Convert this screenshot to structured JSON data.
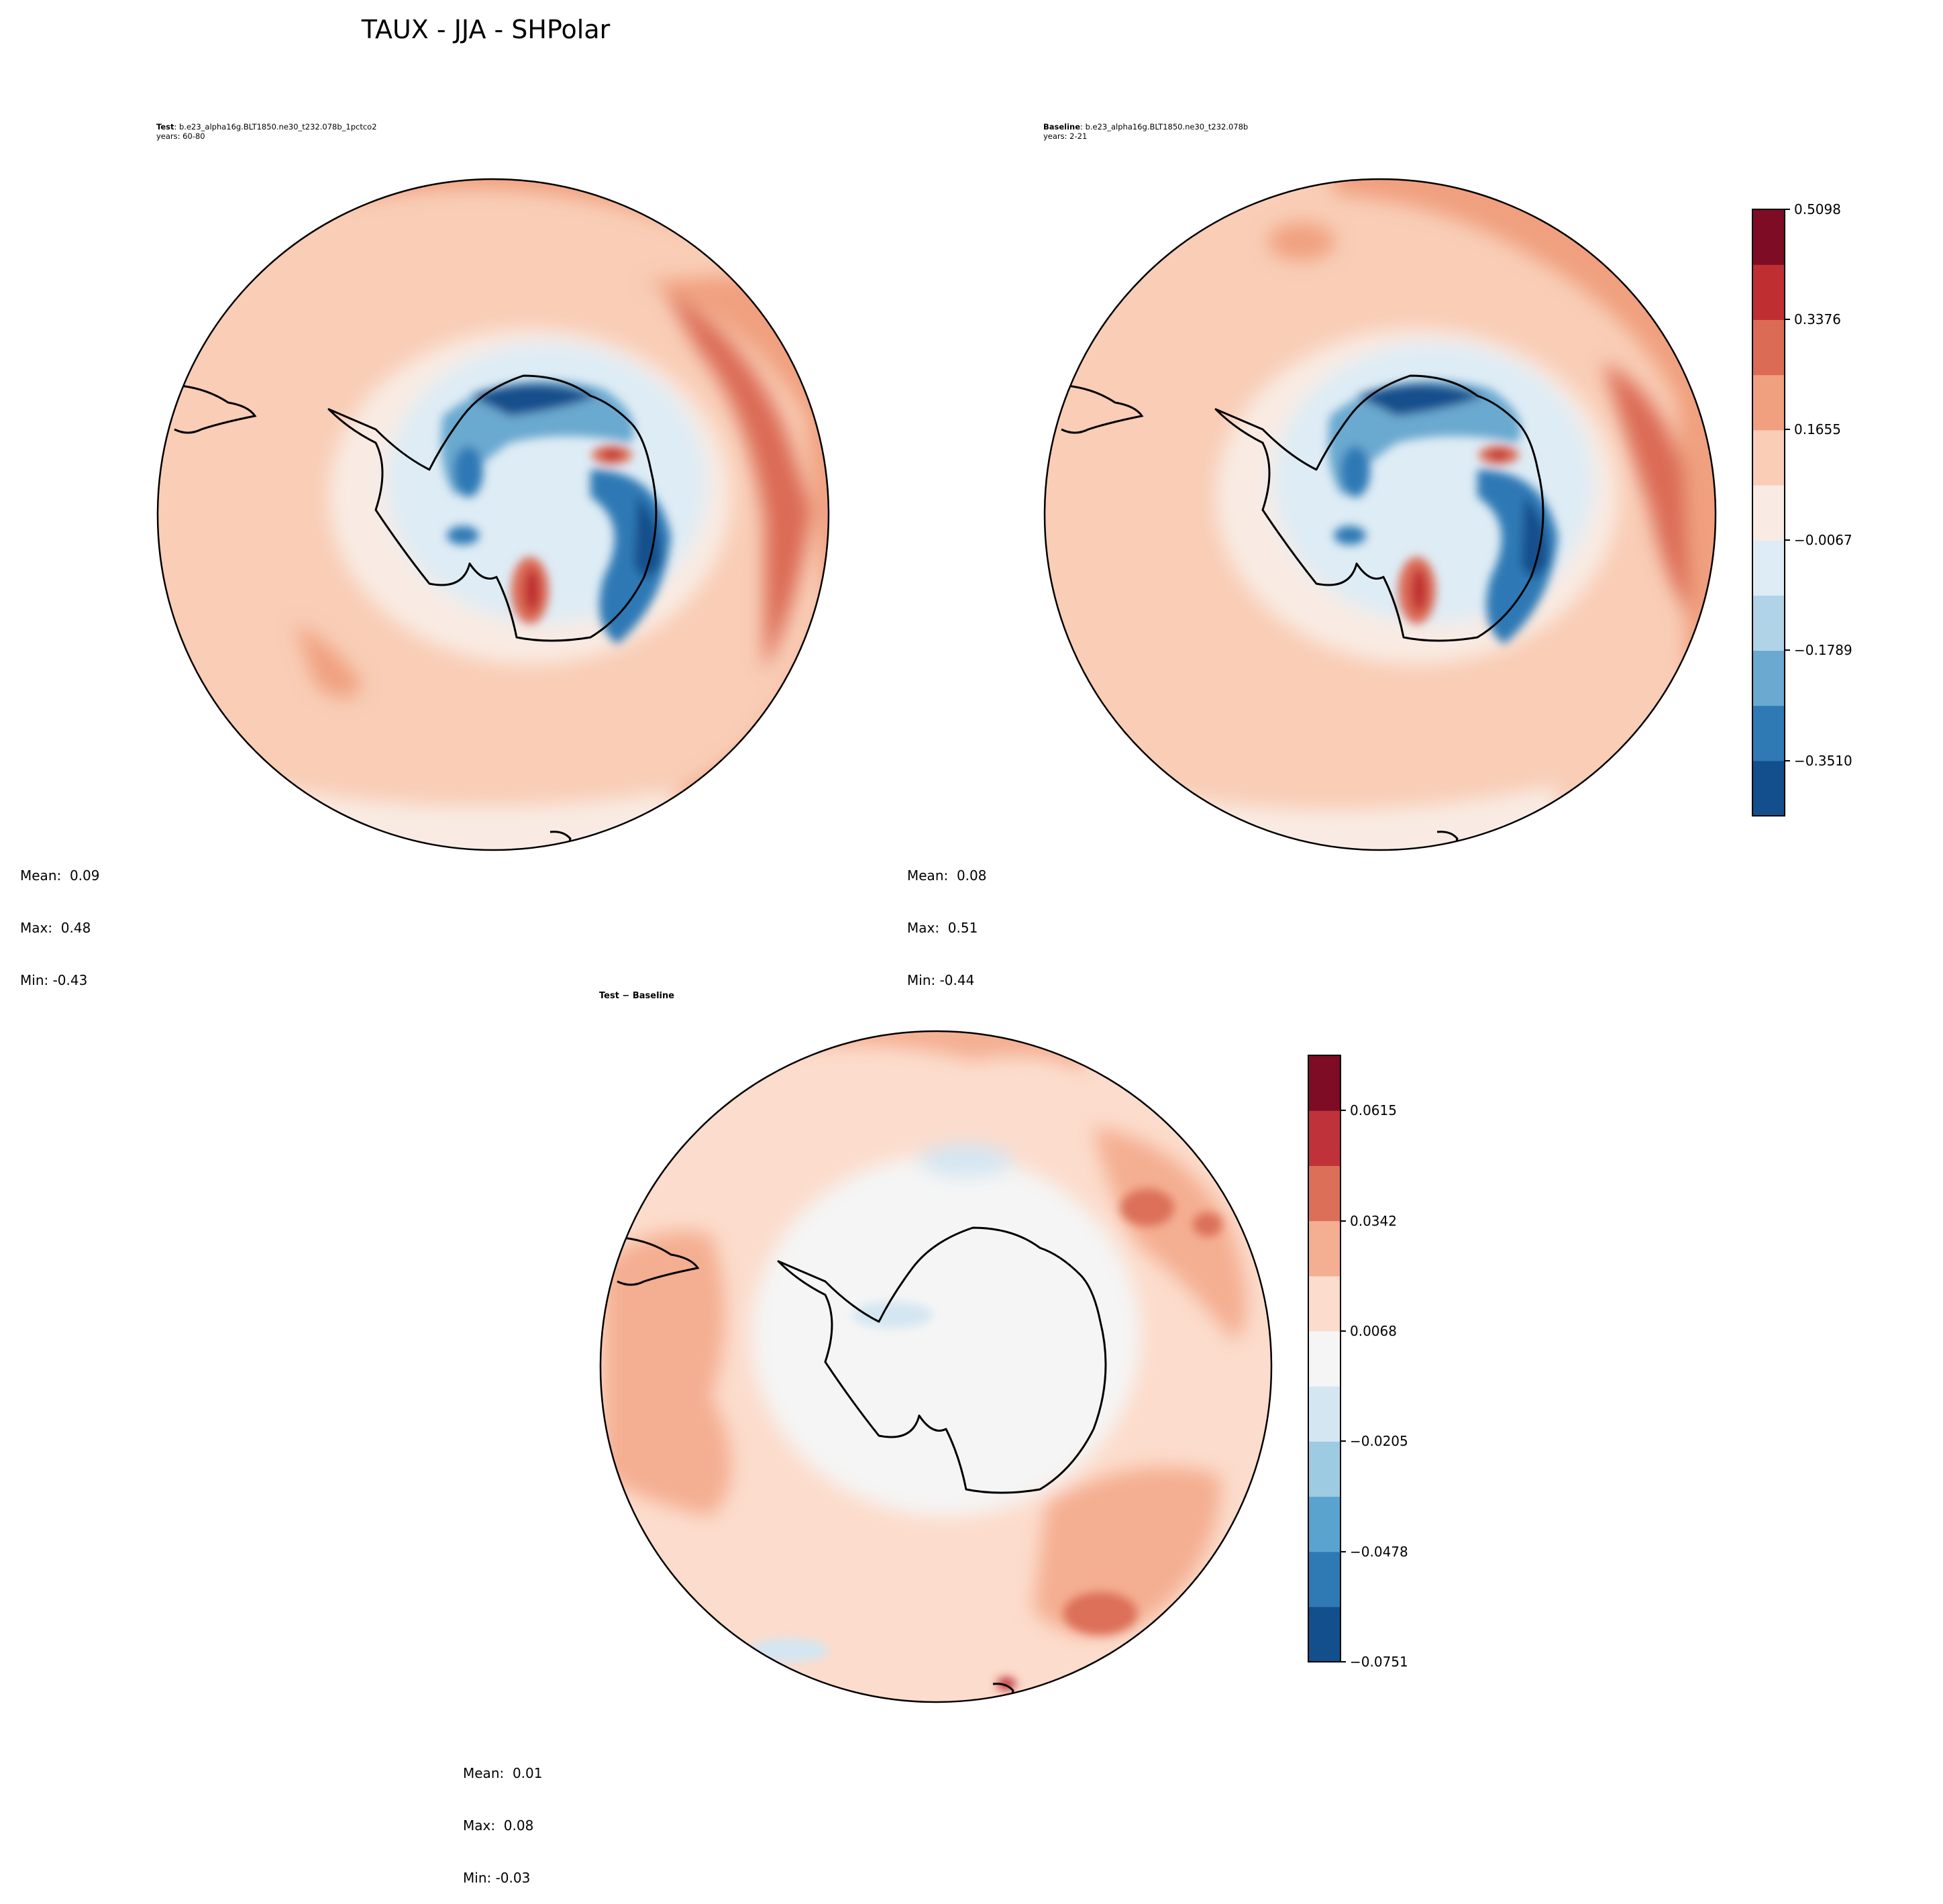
{
  "title": "TAUX - JJA - SHPolar",
  "chart_data": [
    {
      "type": "heatmap",
      "panel": "test",
      "projection": "south-polar-stereographic",
      "label_bold": "Test",
      "label_text": ": b.e23_alpha16g.BLT1850.ne30_t232.078b_1pctco2",
      "years": "years: 60-80",
      "stats": {
        "mean": "Mean:  0.09",
        "max": "Max:  0.48",
        "min": "Min: -0.43"
      }
    },
    {
      "type": "heatmap",
      "panel": "baseline",
      "projection": "south-polar-stereographic",
      "label_bold": "Baseline",
      "label_text": ": b.e23_alpha16g.BLT1850.ne30_t232.078b",
      "years": "years: 2-21",
      "stats": {
        "mean": "Mean:  0.08",
        "max": "Max:  0.51",
        "min": "Min: -0.44"
      },
      "colorbar": {
        "ticks": [
          "0.5098",
          "0.3376",
          "0.1655",
          "−0.0067",
          "−0.1789",
          "−0.3510"
        ],
        "colors": [
          "#124f8c",
          "#2f79b5",
          "#6ba9d0",
          "#b0d3e7",
          "#deecf5",
          "#f9ebe3",
          "#f9cdb6",
          "#f0a07f",
          "#db6b55",
          "#bf2f31",
          "#7d0c24"
        ]
      }
    },
    {
      "type": "heatmap",
      "panel": "difference",
      "projection": "south-polar-stereographic",
      "label_bold": "Test − Baseline",
      "stats": {
        "mean": "Mean:  0.01",
        "max": "Max:  0.08",
        "min": "Min: -0.03"
      },
      "colorbar": {
        "ticks": [
          "0.0615",
          "0.0342",
          "0.0068",
          "−0.0205",
          "−0.0478",
          "−0.0751"
        ],
        "colors": [
          "#124f8c",
          "#2f79b5",
          "#5aa3cf",
          "#9dcbe2",
          "#d4e6f2",
          "#f5f5f5",
          "#fcdccc",
          "#f4ae91",
          "#dc6f58",
          "#c0323a",
          "#7d0c24"
        ]
      }
    }
  ]
}
